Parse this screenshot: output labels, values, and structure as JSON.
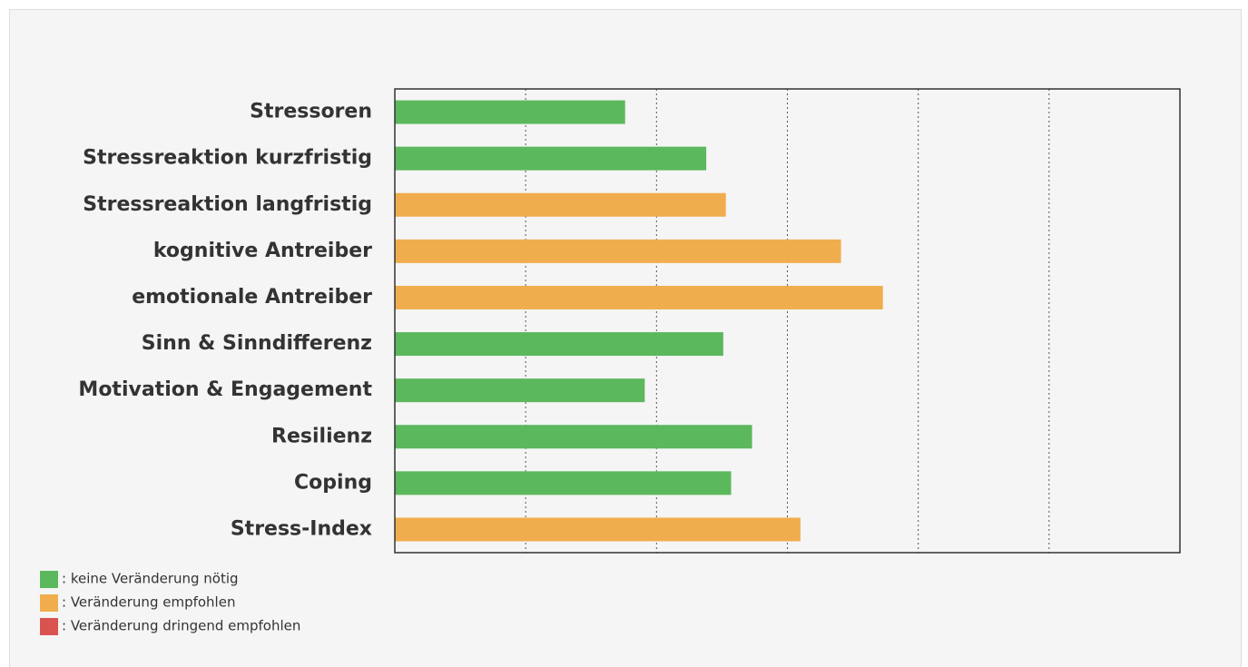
{
  "chart_data": {
    "type": "bar",
    "orientation": "horizontal",
    "categories": [
      "Stressoren",
      "Stressreaktion kurzfristig",
      "Stressreaktion langfristig",
      "kognitive Antreiber",
      "emotionale Antreiber",
      "Sinn & Sinndifferenz",
      "Motivation & Engagement",
      "Resilienz",
      "Coping",
      "Stress-Index"
    ],
    "values": [
      1.76,
      2.38,
      2.53,
      3.41,
      3.73,
      2.51,
      1.91,
      2.73,
      2.57,
      3.1
    ],
    "colors": [
      "#5cb85c",
      "#5cb85c",
      "#f0ad4e",
      "#f0ad4e",
      "#f0ad4e",
      "#5cb85c",
      "#5cb85c",
      "#5cb85c",
      "#5cb85c",
      "#f0ad4e"
    ],
    "xlim": [
      0,
      6
    ],
    "xticks": [
      1,
      2,
      3,
      4,
      5
    ],
    "grid": true,
    "legend": [
      {
        "name": ": keine Veränderung nötig",
        "color": "#5cb85c"
      },
      {
        "name": ": Veränderung empfohlen",
        "color": "#f0ad4e"
      },
      {
        "name": ": Veränderung dringend empfohlen",
        "color": "#d9534f"
      }
    ]
  }
}
